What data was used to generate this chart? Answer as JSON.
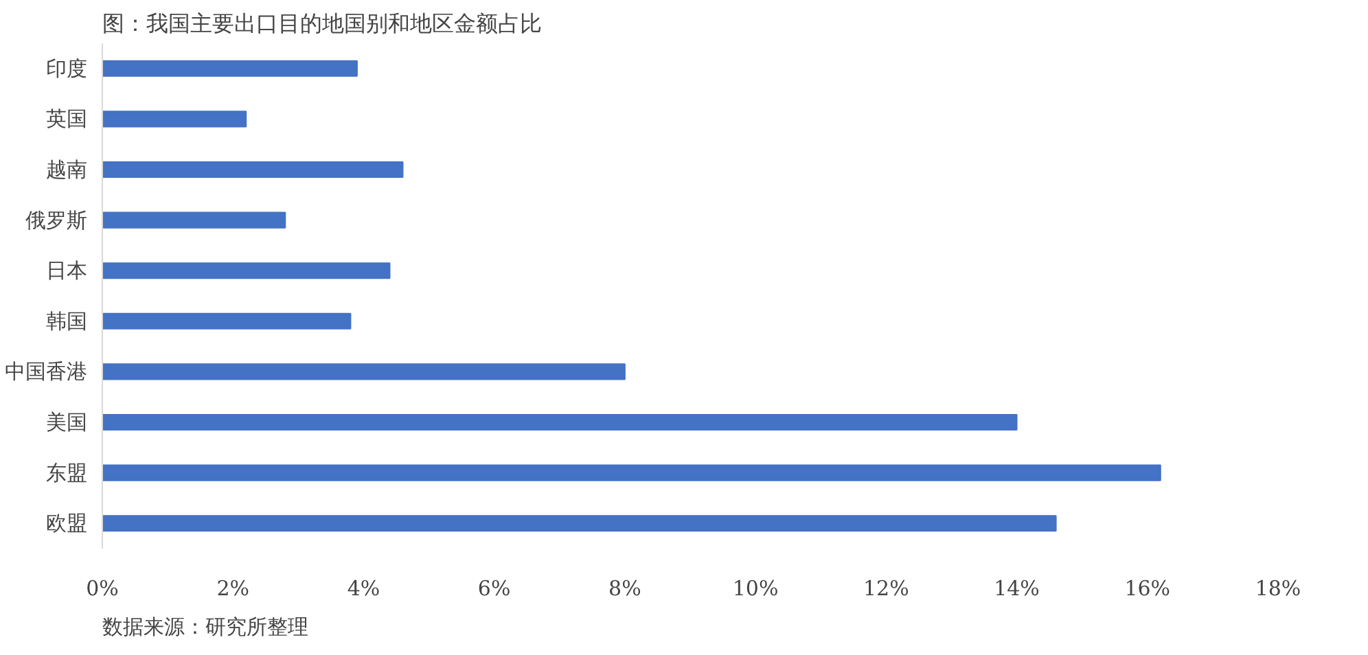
{
  "chart_data": {
    "type": "bar",
    "orientation": "horizontal",
    "title": "图：我国主要出口目的地国别和地区金额占比",
    "annotations": [
      "数据来源：研究所整理"
    ],
    "categories": [
      "印度",
      "英国",
      "越南",
      "俄罗斯",
      "日本",
      "韩国",
      "中国香港",
      "美国",
      "东盟",
      "欧盟"
    ],
    "values": [
      3.9,
      2.2,
      4.6,
      2.8,
      4.4,
      3.8,
      8.0,
      14.0,
      16.2,
      14.6
    ],
    "color": "#4472c4",
    "xlim": [
      0,
      18
    ],
    "xticks": [
      {
        "value": 0,
        "label": "0%"
      },
      {
        "value": 2,
        "label": "2%"
      },
      {
        "value": 4,
        "label": "4%"
      },
      {
        "value": 6,
        "label": "6%"
      },
      {
        "value": 8,
        "label": "8%"
      },
      {
        "value": 10,
        "label": "10%"
      },
      {
        "value": 12,
        "label": "12%"
      },
      {
        "value": 14,
        "label": "14%"
      },
      {
        "value": 16,
        "label": "16%"
      },
      {
        "value": 18,
        "label": "18%"
      }
    ],
    "grid": false
  }
}
